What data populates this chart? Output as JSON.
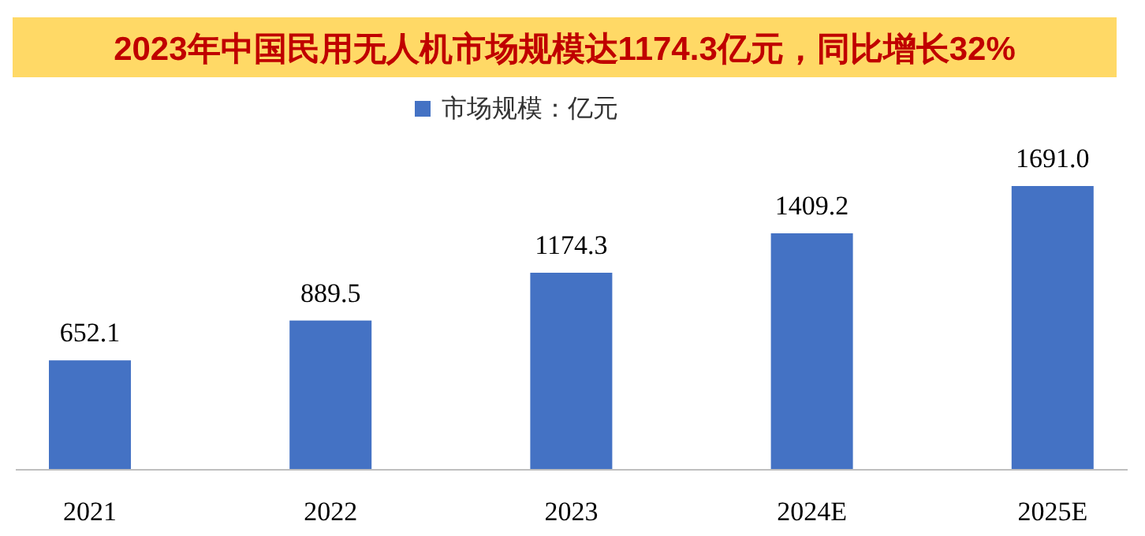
{
  "chart_data": {
    "type": "bar",
    "title": "2023年中国民用无人机市场规模达1174.3亿元，同比增长32%",
    "categories": [
      "2021",
      "2022",
      "2023",
      "2024E",
      "2025E"
    ],
    "series": [
      {
        "name": "市场规模：亿元",
        "color": "#4472c4",
        "values": [
          652.1,
          889.5,
          1174.3,
          1409.2,
          1691.0
        ],
        "value_labels": [
          "652.1",
          "889.5",
          "1174.3",
          "1409.2",
          "1691.0"
        ]
      }
    ],
    "legend": "top"
  }
}
